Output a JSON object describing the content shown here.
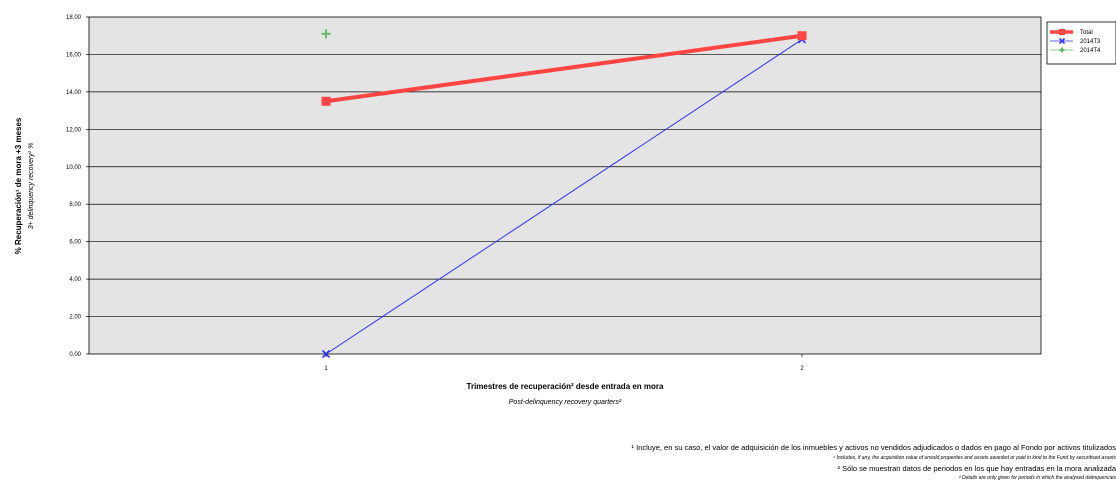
{
  "chart_data": {
    "type": "line",
    "categories": [
      "1",
      "2"
    ],
    "y_ticks": [
      "0,00",
      "2,00",
      "4,00",
      "6,00",
      "8,00",
      "10,00",
      "12,00",
      "14,00",
      "16,00",
      "18,00"
    ],
    "ylim": [
      0,
      18
    ],
    "grid": true,
    "legend_position": "top-right",
    "xlabel": "Trimestres de recuperación² desde entrada en mora",
    "xlabel_en": "Post-delinquency recovery quarters²",
    "ylabel": "% Recuperación¹ de mora +3 meses",
    "ylabel_en": "3+ delinquency recovery¹ %",
    "series": [
      {
        "name": "Total",
        "values": [
          13.5,
          17.0
        ],
        "color": "#ff4444",
        "marker": "square"
      },
      {
        "name": "2014T3",
        "values": [
          0.0,
          16.8
        ],
        "color": "#3333ff",
        "marker": "x"
      },
      {
        "name": "2014T4",
        "values": [
          17.1,
          null
        ],
        "color": "#66bb66",
        "marker": "plus"
      }
    ]
  },
  "footnotes": {
    "fn1": "¹ Incluye, en su caso, el valor de adquisición de los inmuebles y activos no vendidos adjudicados o dados en pago al Fondo por activos titulizados",
    "fn1_en": "¹ Includes, if any, the acquisition value of unsold properties and assets awarded or paid in kind to the Fund by securitised assets",
    "fn2": "² Sólo se muestran datos de periodos en los que hay entradas en la mora analizada",
    "fn2_en": "² Details are only given for periods in which the analysed delinquencies"
  }
}
